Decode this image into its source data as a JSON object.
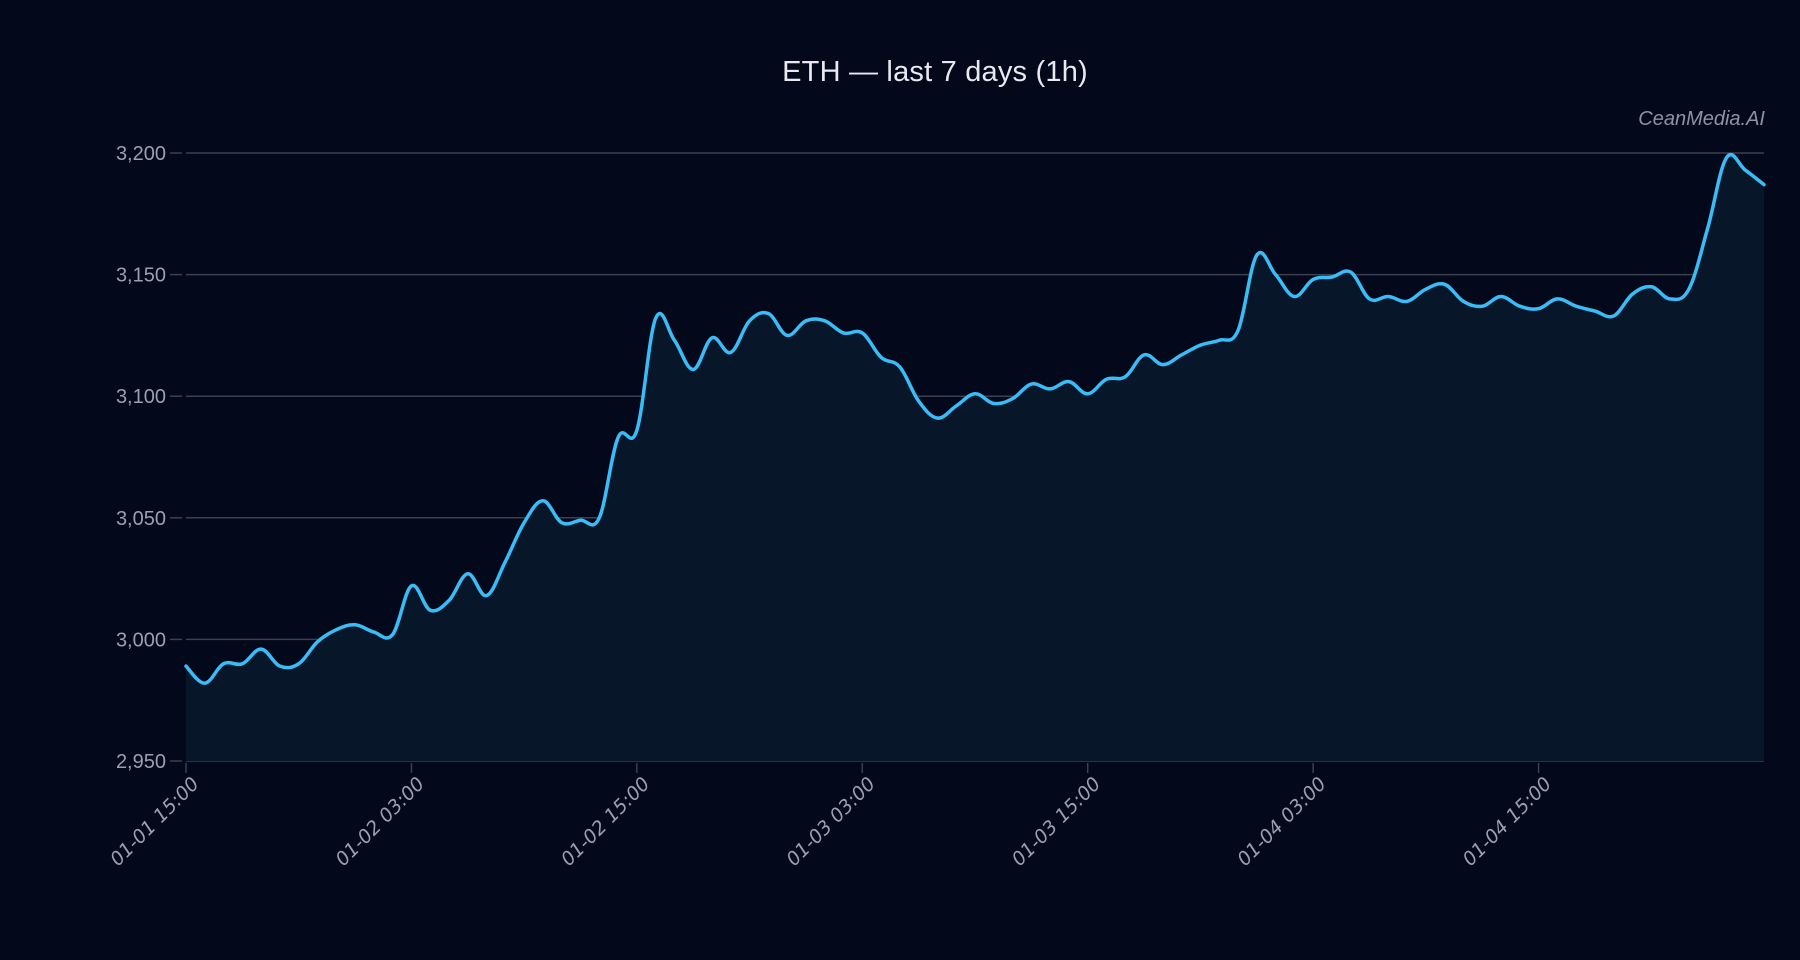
{
  "header": {
    "title": "ETH — last 7 days (1h)",
    "watermark": "CeanMedia.AI"
  },
  "colors": {
    "background": "#03081a",
    "line": "#38bdf8",
    "area_fill": "#071628",
    "grid": "#3a4150",
    "tick_text": "#9aa0ad"
  },
  "chart_data": {
    "type": "area",
    "title": "ETH — last 7 days (1h)",
    "xlabel": "",
    "ylabel": "",
    "ylim": [
      2950,
      3200
    ],
    "yticks": [
      2950,
      3000,
      3050,
      3100,
      3150,
      3200
    ],
    "ytick_labels": [
      "2,950",
      "3,000",
      "3,050",
      "3,100",
      "3,150",
      "3,200"
    ],
    "xtick_labels": [
      "01-01 15:00",
      "01-02 03:00",
      "01-02 15:00",
      "01-03 03:00",
      "01-03 15:00",
      "01-04 03:00",
      "01-04 15:00"
    ],
    "xtick_index": [
      0,
      12,
      24,
      36,
      48,
      60,
      72
    ],
    "grid": true,
    "legend": null,
    "interval": "1h",
    "series": [
      {
        "name": "ETH",
        "values": [
          2989,
          2982,
          2990,
          2990,
          2996,
          2989,
          2990,
          2999,
          3004,
          3006,
          3003,
          3002,
          3022,
          3012,
          3016,
          3027,
          3018,
          3032,
          3048,
          3057,
          3048,
          3049,
          3050,
          3083,
          3086,
          3132,
          3123,
          3111,
          3124,
          3118,
          3131,
          3134,
          3125,
          3131,
          3131,
          3126,
          3126,
          3116,
          3112,
          3098,
          3091,
          3096,
          3101,
          3097,
          3099,
          3105,
          3103,
          3106,
          3101,
          3107,
          3108,
          3117,
          3113,
          3117,
          3121,
          3123,
          3127,
          3158,
          3150,
          3141,
          3148,
          3149,
          3151,
          3140,
          3141,
          3139,
          3144,
          3146,
          3139,
          3137,
          3141,
          3137,
          3136,
          3140,
          3137,
          3135,
          3133,
          3142,
          3145,
          3140,
          3144,
          3169,
          3198,
          3193,
          3187
        ]
      }
    ]
  }
}
